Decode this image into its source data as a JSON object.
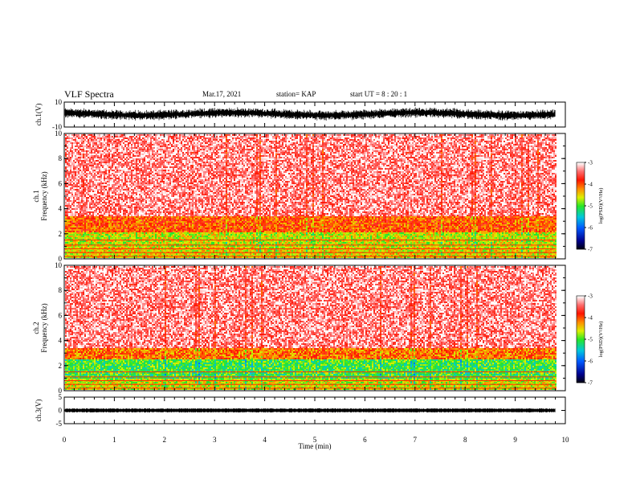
{
  "header": {
    "title": "VLF Spectra",
    "date": "Mar.17, 2021",
    "station": "station= KAP",
    "start": "start  UT =  8 : 20 : 1"
  },
  "chart_data": [
    {
      "type": "line",
      "panel": "ch1-waveform",
      "ylabel": "ch.1(V)",
      "ylim": [
        -10,
        10
      ],
      "yticks": [
        "10",
        "-10"
      ],
      "xlim": [
        0,
        10
      ],
      "data_end_min": 9.8,
      "envelope": {
        "min": -4,
        "max": 5,
        "color": "#000000"
      }
    },
    {
      "type": "heatmap",
      "panel": "ch1-spectrogram",
      "ylabel_line1": "ch.1",
      "ylabel_line2": "Frequency  (kHz)",
      "ylim": [
        0,
        10
      ],
      "yticks": [
        "0",
        "2",
        "4",
        "6",
        "8",
        "10"
      ],
      "xlim": [
        0,
        10
      ],
      "data_end_min": 9.8,
      "colorbar": {
        "label": "log(PSD)(V²/Hz)",
        "range": [
          -7,
          -3
        ],
        "ticks": [
          "-3",
          "-4",
          "-5",
          "-6",
          "-7"
        ]
      },
      "bands": [
        {
          "from_khz": 0.0,
          "to_khz": 1.0,
          "level": -4.5
        },
        {
          "from_khz": 1.0,
          "to_khz": 2.2,
          "level": -4.6
        },
        {
          "from_khz": 2.2,
          "to_khz": 3.5,
          "level": -4.0
        },
        {
          "from_khz": 3.5,
          "to_khz": 10.0,
          "level": -3.3
        }
      ]
    },
    {
      "type": "heatmap",
      "panel": "ch2-spectrogram",
      "ylabel_line1": "ch.2",
      "ylabel_line2": "Frequency  (kHz)",
      "ylim": [
        0,
        10
      ],
      "yticks": [
        "0",
        "2",
        "4",
        "6",
        "8",
        "10"
      ],
      "xlim": [
        0,
        10
      ],
      "data_end_min": 9.8,
      "colorbar": {
        "label": "log(PSD)(V²/Hz)",
        "range": [
          -7,
          -3
        ],
        "ticks": [
          "-3",
          "-4",
          "-5",
          "-6",
          "-7"
        ]
      },
      "bands": [
        {
          "from_khz": 0.0,
          "to_khz": 1.0,
          "level": -4.6
        },
        {
          "from_khz": 1.0,
          "to_khz": 2.6,
          "level": -5.0
        },
        {
          "from_khz": 2.6,
          "to_khz": 3.5,
          "level": -4.1
        },
        {
          "from_khz": 3.5,
          "to_khz": 10.0,
          "level": -3.3
        }
      ]
    },
    {
      "type": "line",
      "panel": "ch3-waveform",
      "ylabel": "ch.3(V)",
      "ylim": [
        -5,
        5
      ],
      "yticks": [
        "5",
        "0",
        "-5"
      ],
      "xlim": [
        0,
        10
      ],
      "data_end_min": 9.8,
      "envelope": {
        "min": -0.8,
        "max": 0.8,
        "color": "#000000"
      },
      "xlabel": "Time  (min)",
      "xticks": [
        "0",
        "1",
        "2",
        "3",
        "4",
        "5",
        "6",
        "7",
        "8",
        "9",
        "10"
      ]
    }
  ]
}
